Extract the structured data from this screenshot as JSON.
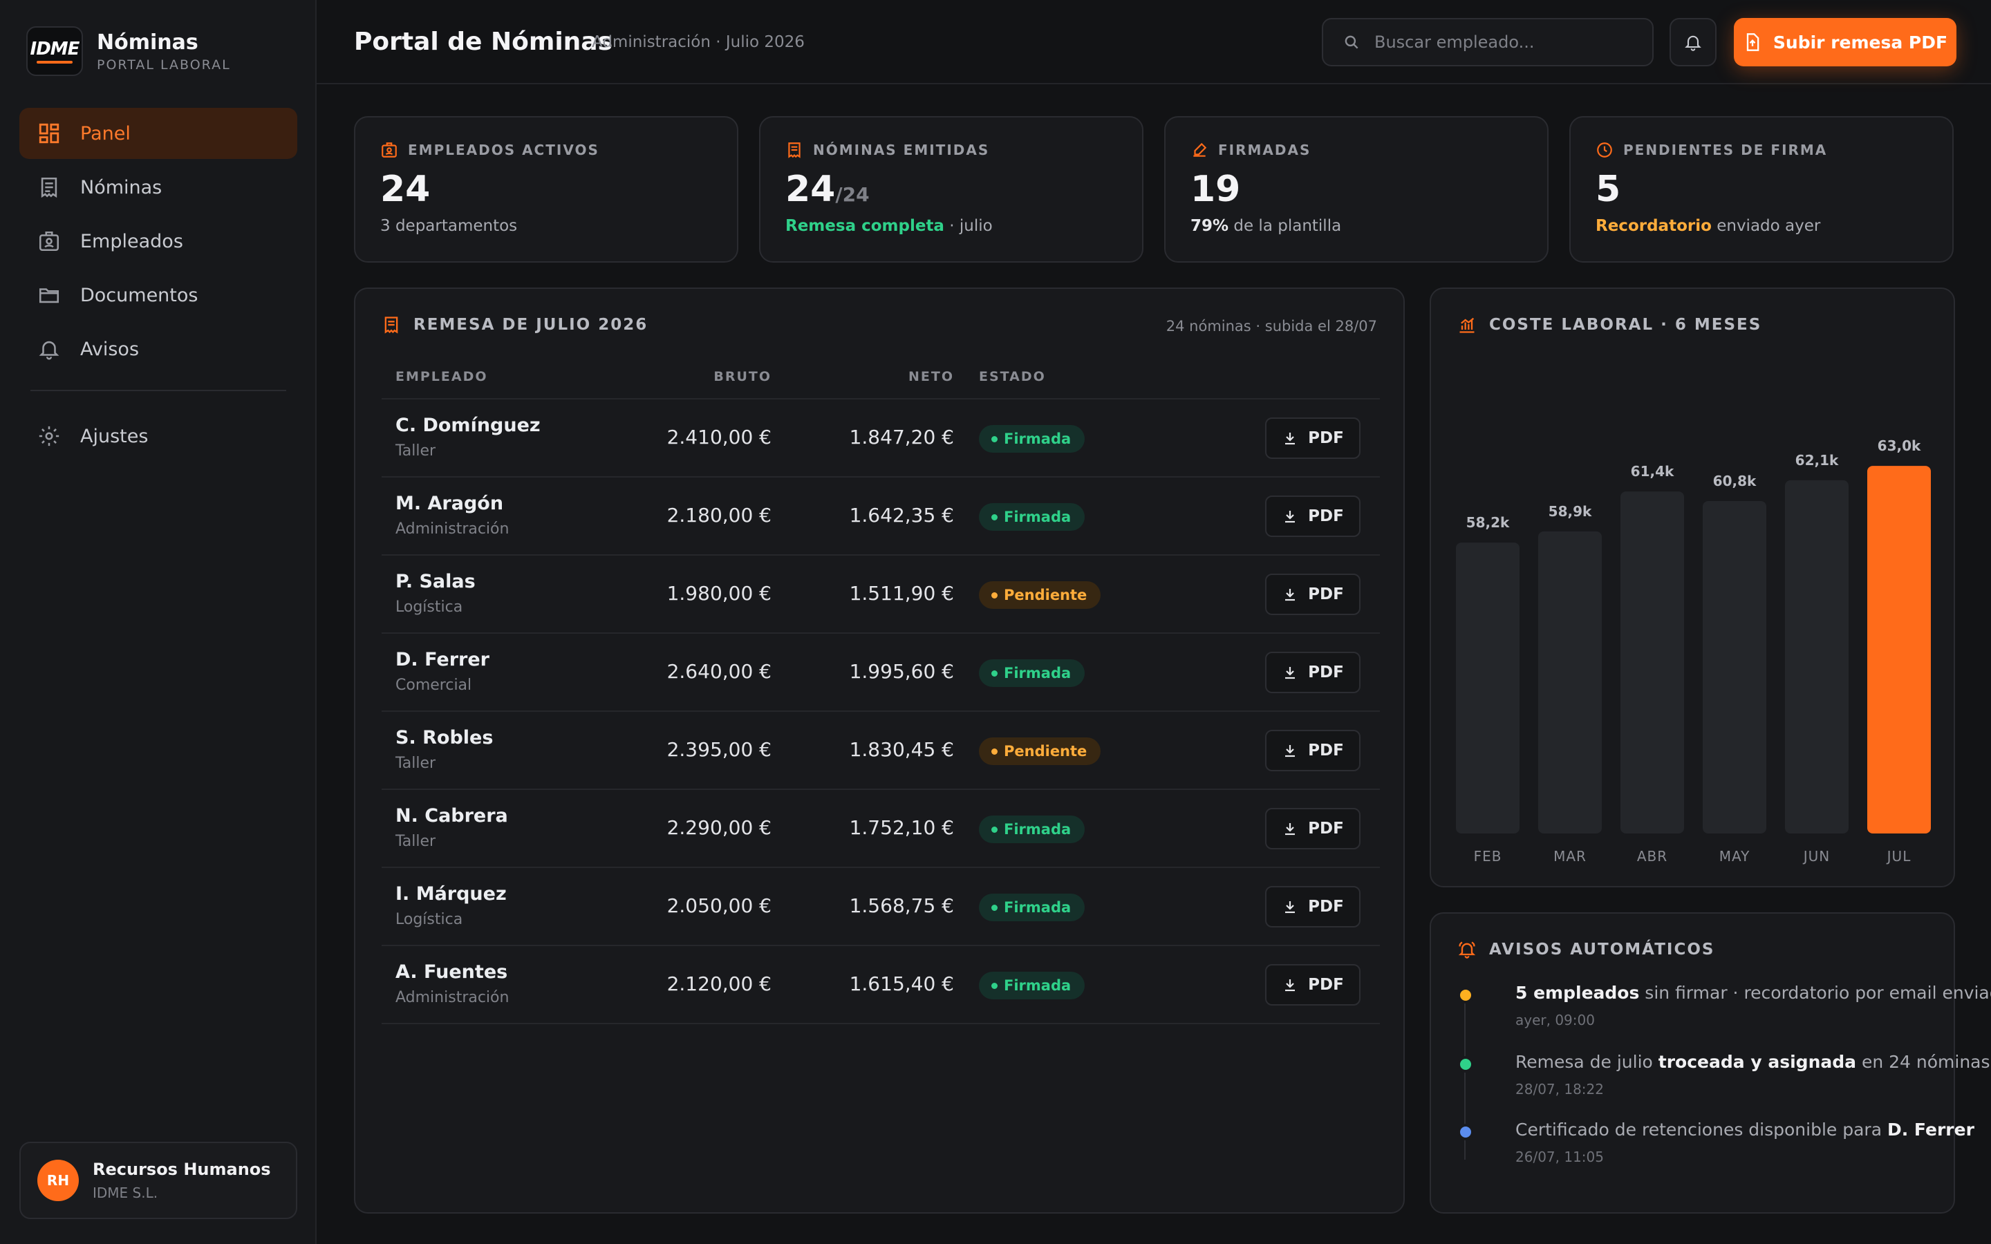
{
  "brand": {
    "logo_text": "IDME",
    "title": "Nóminas",
    "subtitle": "PORTAL LABORAL"
  },
  "sidebar": {
    "items": [
      {
        "label": "Panel",
        "icon": "dashboard-icon",
        "active": true
      },
      {
        "label": "Nóminas",
        "icon": "receipt-icon"
      },
      {
        "label": "Empleados",
        "icon": "id-badge-icon"
      },
      {
        "label": "Documentos",
        "icon": "folder-icon"
      },
      {
        "label": "Avisos",
        "icon": "bell-icon"
      }
    ],
    "settings": {
      "label": "Ajustes",
      "icon": "gear-icon"
    },
    "user": {
      "initials": "RH",
      "name": "Recursos Humanos",
      "org": "IDME S.L."
    }
  },
  "header": {
    "title": "Portal de Nóminas",
    "subtitle": "Administración · Julio 2026",
    "search_placeholder": "Buscar empleado...",
    "upload_label": "Subir remesa PDF"
  },
  "kpis": [
    {
      "label": "EMPLEADOS ACTIVOS",
      "icon": "badge-icon",
      "value": "24",
      "value_suffix": "",
      "sub_strong": "",
      "sub_rest": "3 departamentos"
    },
    {
      "label": "NÓMINAS EMITIDAS",
      "icon": "receipt-icon",
      "value": "24",
      "value_suffix": "/24",
      "sub_strong": "Remesa completa",
      "sub_rest": " · julio"
    },
    {
      "label": "FIRMADAS",
      "icon": "signature-icon",
      "value": "19",
      "value_suffix": "",
      "sub_strong": "79%",
      "sub_rest": " de la plantilla"
    },
    {
      "label": "PENDIENTES DE FIRMA",
      "icon": "clock-icon",
      "value": "5",
      "value_suffix": "",
      "sub_strong": "Recordatorio",
      "sub_rest": " enviado ayer"
    }
  ],
  "table": {
    "title": "REMESA DE JULIO 2026",
    "note": "24 nóminas · subida el 28/07",
    "columns": {
      "empleado": "EMPLEADO",
      "bruto": "BRUTO",
      "neto": "NETO",
      "estado": "ESTADO"
    },
    "pdf_label": "PDF",
    "rows": [
      {
        "name": "C. Domínguez",
        "dept": "Taller",
        "bruto": "2.410,00 €",
        "neto": "1.847,20 €",
        "status": "Firmada"
      },
      {
        "name": "M. Aragón",
        "dept": "Administración",
        "bruto": "2.180,00 €",
        "neto": "1.642,35 €",
        "status": "Firmada"
      },
      {
        "name": "P. Salas",
        "dept": "Logística",
        "bruto": "1.980,00 €",
        "neto": "1.511,90 €",
        "status": "Pendiente"
      },
      {
        "name": "D. Ferrer",
        "dept": "Comercial",
        "bruto": "2.640,00 €",
        "neto": "1.995,60 €",
        "status": "Firmada"
      },
      {
        "name": "S. Robles",
        "dept": "Taller",
        "bruto": "2.395,00 €",
        "neto": "1.830,45 €",
        "status": "Pendiente"
      },
      {
        "name": "N. Cabrera",
        "dept": "Taller",
        "bruto": "2.290,00 €",
        "neto": "1.752,10 €",
        "status": "Firmada"
      },
      {
        "name": "I. Márquez",
        "dept": "Logística",
        "bruto": "2.050,00 €",
        "neto": "1.568,75 €",
        "status": "Firmada"
      },
      {
        "name": "A. Fuentes",
        "dept": "Administración",
        "bruto": "2.120,00 €",
        "neto": "1.615,40 €",
        "status": "Firmada"
      }
    ]
  },
  "chart_data": {
    "type": "bar",
    "title": "COSTE LABORAL · 6 MESES",
    "categories": [
      "FEB",
      "MAR",
      "ABR",
      "MAY",
      "JUN",
      "JUL"
    ],
    "values": [
      58.2,
      58.9,
      61.4,
      60.8,
      62.1,
      63.0
    ],
    "value_labels": [
      "58,2k",
      "58,9k",
      "61,4k",
      "60,8k",
      "62,1k",
      "63,0k"
    ],
    "highlight_index": 5,
    "highlight_color": "#ff6b1a",
    "bar_color": "#24262a",
    "grid": false
  },
  "avisos": {
    "title": "AVISOS AUTOMÁTICOS",
    "items": [
      {
        "color": "#ffb020",
        "pre": "",
        "strong": "5 empleados",
        "post": " sin firmar · recordatorio por email enviado",
        "strong2": "",
        "post2": "",
        "time": "ayer, 09:00"
      },
      {
        "color": "#2fd18a",
        "pre": "Remesa de julio ",
        "strong": "troceada y asignada",
        "post": " en 24 nóminas",
        "strong2": "",
        "post2": "",
        "time": "28/07, 18:22"
      },
      {
        "color": "#5b8def",
        "pre": "Certificado de retenciones disponible para ",
        "strong": "D. Ferrer",
        "post": "",
        "strong2": "",
        "post2": "",
        "time": "26/07, 11:05"
      }
    ]
  }
}
